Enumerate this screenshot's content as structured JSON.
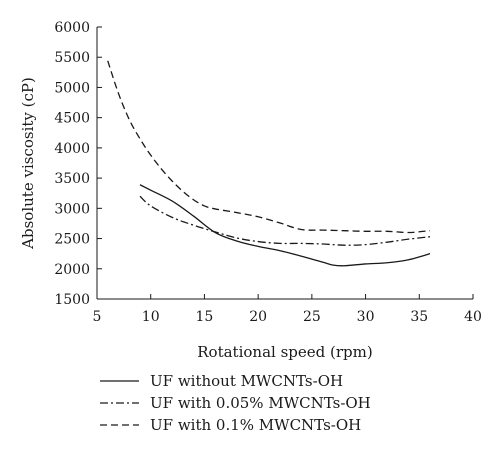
{
  "chart_data": {
    "type": "line",
    "title": "",
    "xlabel": "Rotational speed (rpm)",
    "ylabel": "Absolute viscosity (cP)",
    "xlim": [
      5,
      40
    ],
    "ylim": [
      1500,
      6000
    ],
    "xticks": [
      5,
      10,
      15,
      20,
      25,
      30,
      35,
      40
    ],
    "yticks": [
      1500,
      2000,
      2500,
      3000,
      3500,
      4000,
      4500,
      5000,
      5500,
      6000
    ],
    "grid": false,
    "legend_placement": "bottom",
    "series": [
      {
        "name": "UF without MWCNTs-OH",
        "style": "solid",
        "x": [
          9,
          10,
          12,
          14,
          16,
          18,
          20,
          22,
          24,
          26,
          27,
          28,
          30,
          32,
          34,
          36
        ],
        "y": [
          3390,
          3300,
          3120,
          2870,
          2600,
          2460,
          2370,
          2300,
          2210,
          2110,
          2060,
          2050,
          2080,
          2100,
          2150,
          2250
        ]
      },
      {
        "name": "UF with 0.05% MWCNTs-OH",
        "style": "dashdot",
        "x": [
          9,
          10,
          12,
          14,
          16,
          18,
          20,
          22,
          24,
          26,
          28,
          30,
          32,
          34,
          36
        ],
        "y": [
          3200,
          3040,
          2850,
          2720,
          2610,
          2510,
          2450,
          2420,
          2420,
          2410,
          2390,
          2400,
          2440,
          2490,
          2530
        ]
      },
      {
        "name": "UF with 0.1% MWCNTs-OH",
        "style": "dashed",
        "x": [
          6,
          7,
          8,
          9,
          10,
          11,
          12,
          13,
          14,
          15,
          16,
          18,
          20,
          22,
          24,
          26,
          28,
          30,
          32,
          34,
          36
        ],
        "y": [
          5440,
          4900,
          4470,
          4150,
          3880,
          3650,
          3450,
          3280,
          3140,
          3040,
          2990,
          2930,
          2860,
          2760,
          2650,
          2640,
          2630,
          2620,
          2620,
          2600,
          2630
        ]
      }
    ]
  }
}
